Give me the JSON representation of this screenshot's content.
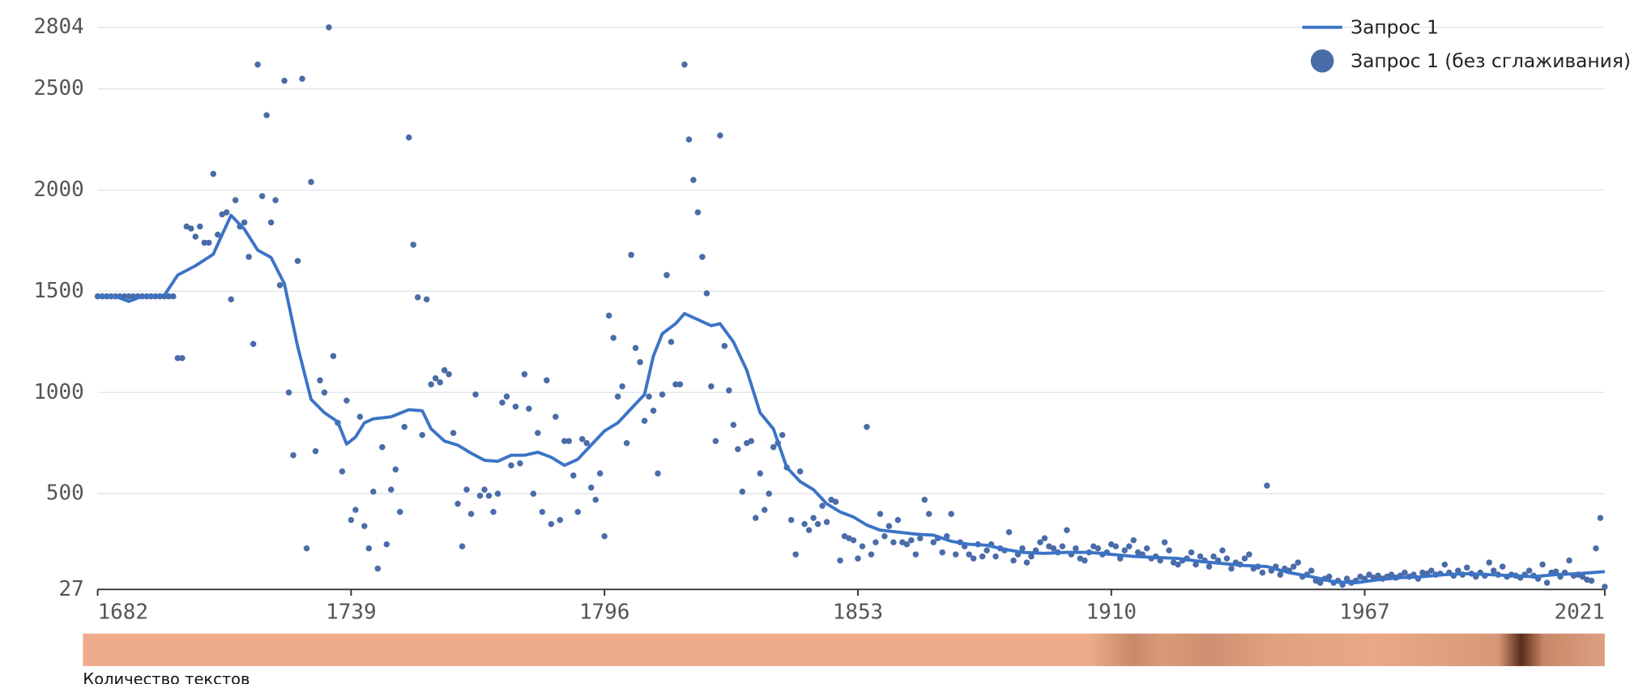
{
  "chart_data": {
    "type": "line",
    "xlim": [
      1682,
      2021
    ],
    "ylim": [
      27,
      2804
    ],
    "xticks": [
      1682,
      1739,
      1796,
      1853,
      1910,
      1967,
      2021
    ],
    "yticks": [
      27,
      500,
      1000,
      1500,
      2000,
      2500,
      2804
    ],
    "grid": true,
    "legend": "top-right",
    "bottom_label": "Количество текстов",
    "series": [
      {
        "name": "Запрос 1",
        "type": "line",
        "color": "#3b73c6",
        "x": [
          1682,
          1686,
          1689,
          1692,
          1697,
          1700,
          1704,
          1708,
          1710,
          1712,
          1715,
          1718,
          1721,
          1724,
          1727,
          1730,
          1733,
          1736,
          1738,
          1740,
          1742,
          1744,
          1748,
          1752,
          1755,
          1757,
          1760,
          1763,
          1766,
          1769,
          1772,
          1775,
          1778,
          1781,
          1784,
          1787,
          1790,
          1793,
          1796,
          1799,
          1802,
          1805,
          1807,
          1809,
          1812,
          1814,
          1817,
          1820,
          1822,
          1825,
          1828,
          1831,
          1834,
          1837,
          1840,
          1843,
          1846,
          1849,
          1852,
          1855,
          1858,
          1862,
          1866,
          1870,
          1874,
          1878,
          1882,
          1886,
          1890,
          1895,
          1900,
          1905,
          1910,
          1915,
          1920,
          1925,
          1930,
          1935,
          1940,
          1945,
          1950,
          1955,
          1960,
          1965,
          1970,
          1975,
          1980,
          1985,
          1990,
          1995,
          2000,
          2005,
          2010,
          2015,
          2021
        ],
        "values": [
          1475,
          1475,
          1450,
          1475,
          1480,
          1580,
          1626,
          1683,
          1780,
          1875,
          1807,
          1703,
          1667,
          1537,
          1226,
          966,
          900,
          855,
          745,
          780,
          850,
          870,
          880,
          915,
          910,
          820,
          760,
          740,
          700,
          665,
          660,
          690,
          690,
          705,
          680,
          640,
          670,
          740,
          810,
          850,
          920,
          990,
          1180,
          1290,
          1340,
          1390,
          1360,
          1330,
          1340,
          1250,
          1110,
          900,
          820,
          630,
          560,
          520,
          450,
          410,
          385,
          345,
          320,
          310,
          300,
          295,
          265,
          250,
          245,
          225,
          210,
          205,
          210,
          210,
          200,
          190,
          185,
          180,
          165,
          155,
          145,
          140,
          110,
          90,
          65,
          60,
          75,
          85,
          90,
          100,
          105,
          100,
          95,
          90,
          100,
          105,
          115
        ]
      },
      {
        "name": "Запрос 1 (без сглаживания)",
        "type": "scatter",
        "color": "#4a6ca8",
        "x": [
          1682,
          1683,
          1684,
          1685,
          1686,
          1687,
          1688,
          1689,
          1690,
          1691,
          1692,
          1693,
          1694,
          1695,
          1696,
          1697,
          1698,
          1699,
          1700,
          1701,
          1702,
          1703,
          1704,
          1705,
          1706,
          1707,
          1708,
          1709,
          1710,
          1711,
          1712,
          1713,
          1714,
          1715,
          1716,
          1717,
          1718,
          1719,
          1720,
          1721,
          1722,
          1723,
          1724,
          1725,
          1726,
          1727,
          1728,
          1729,
          1730,
          1731,
          1732,
          1733,
          1734,
          1735,
          1736,
          1737,
          1738,
          1739,
          1740,
          1741,
          1742,
          1743,
          1744,
          1745,
          1746,
          1747,
          1748,
          1749,
          1750,
          1751,
          1752,
          1753,
          1754,
          1755,
          1756,
          1757,
          1758,
          1759,
          1760,
          1761,
          1762,
          1763,
          1764,
          1765,
          1766,
          1767,
          1768,
          1769,
          1770,
          1771,
          1772,
          1773,
          1774,
          1775,
          1776,
          1777,
          1778,
          1779,
          1780,
          1781,
          1782,
          1783,
          1784,
          1785,
          1786,
          1787,
          1788,
          1789,
          1790,
          1791,
          1792,
          1793,
          1794,
          1795,
          1796,
          1797,
          1798,
          1799,
          1800,
          1801,
          1802,
          1803,
          1804,
          1805,
          1806,
          1807,
          1808,
          1809,
          1810,
          1811,
          1812,
          1813,
          1814,
          1815,
          1816,
          1817,
          1818,
          1819,
          1820,
          1821,
          1822,
          1823,
          1824,
          1825,
          1826,
          1827,
          1828,
          1829,
          1830,
          1831,
          1832,
          1833,
          1834,
          1835,
          1836,
          1837,
          1838,
          1839,
          1840,
          1841,
          1842,
          1843,
          1844,
          1845,
          1846,
          1847,
          1848,
          1849,
          1850,
          1851,
          1852,
          1853,
          1854,
          1855,
          1856,
          1857,
          1858,
          1859,
          1860,
          1861,
          1862,
          1863,
          1864,
          1865,
          1866,
          1867,
          1868,
          1869,
          1870,
          1871,
          1872,
          1873,
          1874,
          1875,
          1876,
          1877,
          1878,
          1879,
          1880,
          1881,
          1882,
          1883,
          1884,
          1885,
          1886,
          1887,
          1888,
          1889,
          1890,
          1891,
          1892,
          1893,
          1894,
          1895,
          1896,
          1897,
          1898,
          1899,
          1900,
          1901,
          1902,
          1903,
          1904,
          1905,
          1906,
          1907,
          1908,
          1909,
          1910,
          1911,
          1912,
          1913,
          1914,
          1915,
          1916,
          1917,
          1918,
          1919,
          1920,
          1921,
          1922,
          1923,
          1924,
          1925,
          1926,
          1927,
          1928,
          1929,
          1930,
          1931,
          1932,
          1933,
          1934,
          1935,
          1936,
          1937,
          1938,
          1939,
          1940,
          1941,
          1942,
          1943,
          1944,
          1945,
          1946,
          1947,
          1948,
          1949,
          1950,
          1951,
          1952,
          1953,
          1954,
          1955,
          1956,
          1957,
          1958,
          1959,
          1960,
          1961,
          1962,
          1963,
          1964,
          1965,
          1966,
          1967,
          1968,
          1969,
          1970,
          1971,
          1972,
          1973,
          1974,
          1975,
          1976,
          1977,
          1978,
          1979,
          1980,
          1981,
          1982,
          1983,
          1984,
          1985,
          1986,
          1987,
          1988,
          1989,
          1990,
          1991,
          1992,
          1993,
          1994,
          1995,
          1996,
          1997,
          1998,
          1999,
          2000,
          2001,
          2002,
          2003,
          2004,
          2005,
          2006,
          2007,
          2008,
          2009,
          2010,
          2011,
          2012,
          2013,
          2014,
          2015,
          2016,
          2017,
          2018,
          2019,
          2020,
          2021
        ],
        "values": [
          1475,
          1475,
          1475,
          1475,
          1475,
          1475,
          1475,
          1475,
          1475,
          1475,
          1475,
          1475,
          1475,
          1475,
          1475,
          1475,
          1475,
          1475,
          1170,
          1170,
          1820,
          1810,
          1770,
          1820,
          1740,
          1740,
          2080,
          1780,
          1880,
          1890,
          1460,
          1950,
          1820,
          1840,
          1670,
          1240,
          2620,
          1970,
          2370,
          1840,
          1950,
          1530,
          2540,
          1000,
          690,
          1650,
          2550,
          230,
          2040,
          710,
          1060,
          1000,
          2804,
          1180,
          850,
          610,
          960,
          370,
          420,
          880,
          340,
          230,
          510,
          130,
          730,
          250,
          520,
          620,
          410,
          830,
          2260,
          1730,
          1470,
          790,
          1460,
          1040,
          1070,
          1050,
          1110,
          1090,
          800,
          450,
          240,
          520,
          400,
          990,
          490,
          520,
          490,
          410,
          500,
          950,
          980,
          640,
          930,
          650,
          1090,
          920,
          500,
          800,
          410,
          1060,
          350,
          880,
          370,
          760,
          760,
          590,
          410,
          770,
          750,
          530,
          470,
          600,
          290,
          1380,
          1270,
          980,
          1030,
          750,
          1680,
          1220,
          1150,
          860,
          980,
          910,
          600,
          990,
          1580,
          1250,
          1040,
          1040,
          2620,
          2250,
          2050,
          1890,
          1670,
          1490,
          1030,
          760,
          2270,
          1230,
          1010,
          840,
          720,
          510,
          750,
          760,
          380,
          600,
          420,
          500,
          730,
          750,
          790,
          630,
          370,
          200,
          610,
          350,
          320,
          380,
          350,
          440,
          360,
          470,
          460,
          170,
          290,
          280,
          270,
          180,
          240,
          830,
          200,
          260,
          400,
          290,
          340,
          260,
          370,
          260,
          250,
          270,
          200,
          280,
          470,
          400,
          260,
          280,
          210,
          290,
          400,
          200,
          260,
          240,
          200,
          180,
          250,
          190,
          220,
          250,
          190,
          230,
          220,
          310,
          170,
          200,
          230,
          160,
          190,
          220,
          260,
          280,
          240,
          230,
          210,
          240,
          320,
          200,
          230,
          180,
          170,
          210,
          240,
          230,
          200,
          210,
          250,
          240,
          180,
          220,
          240,
          270,
          210,
          200,
          230,
          180,
          190,
          170,
          260,
          220,
          160,
          150,
          170,
          180,
          210,
          150,
          190,
          170,
          140,
          190,
          170,
          220,
          180,
          130,
          160,
          150,
          180,
          200,
          130,
          140,
          110,
          540,
          120,
          140,
          100,
          130,
          120,
          140,
          160,
          90,
          100,
          120,
          70,
          60,
          80,
          90,
          60,
          70,
          50,
          80,
          60,
          70,
          90,
          80,
          100,
          85,
          95,
          80,
          90,
          100,
          85,
          95,
          110,
          90,
          100,
          80,
          110,
          105,
          120,
          100,
          105,
          150,
          110,
          95,
          120,
          100,
          135,
          105,
          90,
          110,
          95,
          160,
          120,
          100,
          140,
          90,
          100,
          95,
          85,
          100,
          120,
          95,
          80,
          150,
          60,
          110,
          115,
          90,
          110,
          170,
          95,
          100,
          90,
          75,
          70,
          230,
          380,
          40
        ]
      }
    ]
  }
}
